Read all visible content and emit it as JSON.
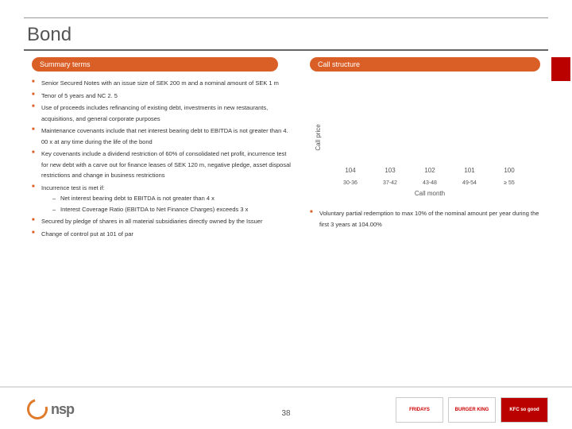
{
  "title": "Bond",
  "left_header": "Summary terms",
  "right_header": "Call structure",
  "page_number": "38",
  "colors": {
    "accent": "#d95f27",
    "bar": "#7b2d6f",
    "rule": "#666",
    "text": "#333"
  },
  "left_bullets": [
    "Senior Secured Notes with an issue size of SEK 200 m and a nominal amount of SEK 1 m",
    "Tenor of 5 years and NC 2. 5",
    "Use of proceeds includes refinancing of existing debt, investments in new restaurants, acquisitions, and general corporate purposes",
    "Maintenance covenants include that net interest bearing debt to EBITDA is not greater than 4. 00 x at any time during the life of the bond",
    "Key covenants include a dividend restriction of 60% of consolidated net profit, incurrence test for new debt with a carve out for finance leases of SEK 120 m, negative pledge, asset disposal restrictions and change in business restrictions",
    "Incurrence test is met if:",
    "Secured by pledge of shares in all material subsidiaries directly owned by the Issuer",
    "Change of control put at 101 of par"
  ],
  "left_sub": [
    "Net interest bearing debt to EBITDA is not greater than 4 x",
    "Interest Coverage Ratio (EBITDA to Net Finance Charges) exceeds 3 x"
  ],
  "chart": {
    "type": "bar",
    "ylabel": "Call price",
    "xlabel": "Call month",
    "categories": [
      "30-36",
      "37-42",
      "43-48",
      "49-54",
      "≥ 55"
    ],
    "values": [
      104,
      103,
      102,
      101,
      100
    ],
    "value_labels": [
      "104",
      "103",
      "102",
      "101",
      "100"
    ],
    "ylim": [
      98,
      105
    ],
    "bar_color": "#7b2d6f",
    "background": "#ffffff",
    "bar_width_pct": 70,
    "value_fontsize": 8,
    "tick_fontsize": 7,
    "label_fontsize": 8
  },
  "right_bullets": [
    "Voluntary partial redemption to max 10% of the nominal amount per year during the first 3 years at 104.00%"
  ],
  "footer": {
    "logo_text": "nsp",
    "logo_sub": "",
    "brand1": "FRIDAYS",
    "brand2": "BURGER KING",
    "brand3": "KFC so good"
  }
}
